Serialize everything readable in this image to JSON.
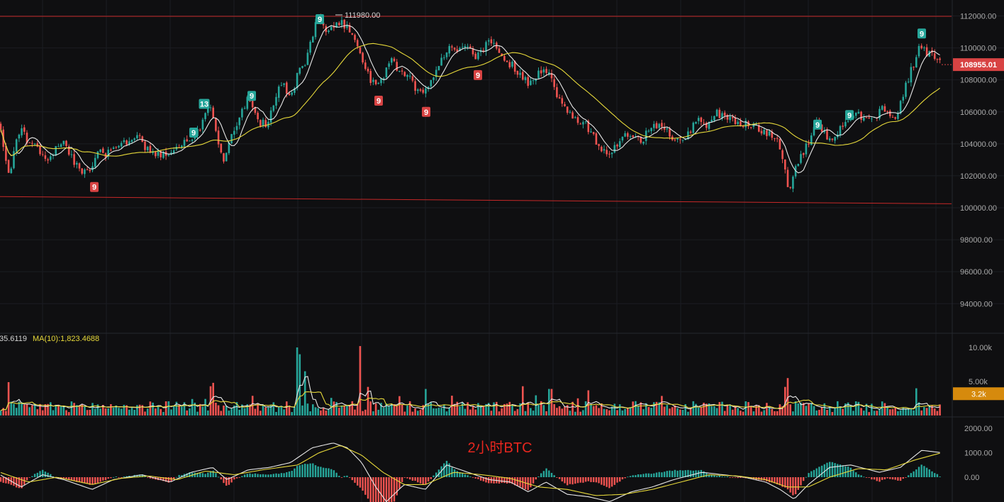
{
  "chart_data": {
    "type": "candlestick",
    "watermark": "2小时BTC",
    "symbol": "BTC",
    "colors": {
      "up": "#26a69a",
      "down": "#ef5350",
      "ma_fast": "#e8e8e8",
      "ma_slow": "#e6d83a",
      "ref_line": "#c62828",
      "price_badge": "#d84343",
      "volume_badge": "#d68a0d",
      "marker_up": "#26a69a",
      "marker_down": "#d84343"
    },
    "price": {
      "ylim": [
        92000,
        112500
      ],
      "y_ticks": [
        "112000.00",
        "110000.00",
        "108000.00",
        "106000.00",
        "104000.00",
        "102000.00",
        "100000.00",
        "98000.00",
        "96000.00",
        "94000.00"
      ],
      "y_tick_values": [
        112000,
        110000,
        108000,
        106000,
        104000,
        102000,
        100000,
        98000,
        96000,
        94000
      ],
      "current_price_label": "108955.01",
      "current_price": 108955.01,
      "high_label": "111980.00",
      "high_value": 111980,
      "resistance_level": 111980,
      "support_line": [
        100700,
        100250
      ],
      "keypoints": [
        [
          0,
          105200
        ],
        [
          8,
          103000
        ],
        [
          14,
          101700
        ],
        [
          22,
          104400
        ],
        [
          30,
          104800
        ],
        [
          40,
          104100
        ],
        [
          55,
          103600
        ],
        [
          70,
          103000
        ],
        [
          85,
          104300
        ],
        [
          100,
          103200
        ],
        [
          115,
          102300
        ],
        [
          130,
          102500
        ],
        [
          140,
          104000
        ],
        [
          150,
          103300
        ],
        [
          165,
          103800
        ],
        [
          180,
          104200
        ],
        [
          195,
          104400
        ],
        [
          210,
          103500
        ],
        [
          225,
          103400
        ],
        [
          240,
          103500
        ],
        [
          255,
          104000
        ],
        [
          270,
          104000
        ],
        [
          280,
          104800
        ],
        [
          288,
          106000
        ],
        [
          295,
          106700
        ],
        [
          305,
          104500
        ],
        [
          315,
          102900
        ],
        [
          325,
          104200
        ],
        [
          340,
          105900
        ],
        [
          350,
          106800
        ],
        [
          365,
          105300
        ],
        [
          378,
          105300
        ],
        [
          390,
          107100
        ],
        [
          400,
          107800
        ],
        [
          410,
          106700
        ],
        [
          420,
          108500
        ],
        [
          430,
          109000
        ],
        [
          440,
          110800
        ],
        [
          448,
          111800
        ],
        [
          460,
          111200
        ],
        [
          470,
          111300
        ],
        [
          480,
          111700
        ],
        [
          490,
          111300
        ],
        [
          500,
          110700
        ],
        [
          510,
          109500
        ],
        [
          520,
          108200
        ],
        [
          530,
          107500
        ],
        [
          540,
          108200
        ],
        [
          550,
          109300
        ],
        [
          560,
          108700
        ],
        [
          575,
          108200
        ],
        [
          590,
          107300
        ],
        [
          600,
          107500
        ],
        [
          610,
          108000
        ],
        [
          620,
          109000
        ],
        [
          635,
          110100
        ],
        [
          650,
          109800
        ],
        [
          660,
          110000
        ],
        [
          670,
          109200
        ],
        [
          685,
          110200
        ],
        [
          695,
          110400
        ],
        [
          705,
          109400
        ],
        [
          720,
          109000
        ],
        [
          735,
          108300
        ],
        [
          745,
          107800
        ],
        [
          760,
          108400
        ],
        [
          775,
          108600
        ],
        [
          785,
          107100
        ],
        [
          795,
          106200
        ],
        [
          810,
          105700
        ],
        [
          825,
          105300
        ],
        [
          835,
          104600
        ],
        [
          845,
          103800
        ],
        [
          860,
          103300
        ],
        [
          870,
          103900
        ],
        [
          880,
          104500
        ],
        [
          895,
          104300
        ],
        [
          905,
          104200
        ],
        [
          915,
          104900
        ],
        [
          930,
          105300
        ],
        [
          945,
          104600
        ],
        [
          960,
          104000
        ],
        [
          975,
          105000
        ],
        [
          985,
          105600
        ],
        [
          995,
          105100
        ],
        [
          1010,
          106000
        ],
        [
          1020,
          105600
        ],
        [
          1035,
          105400
        ],
        [
          1050,
          105300
        ],
        [
          1065,
          105000
        ],
        [
          1080,
          104700
        ],
        [
          1095,
          104500
        ],
        [
          1105,
          103000
        ],
        [
          1112,
          101000
        ],
        [
          1120,
          102200
        ],
        [
          1130,
          103300
        ],
        [
          1140,
          104000
        ],
        [
          1152,
          105300
        ],
        [
          1160,
          104700
        ],
        [
          1170,
          104300
        ],
        [
          1180,
          104700
        ],
        [
          1195,
          105400
        ],
        [
          1210,
          105800
        ],
        [
          1225,
          105500
        ],
        [
          1235,
          105700
        ],
        [
          1245,
          106200
        ],
        [
          1258,
          105500
        ],
        [
          1268,
          106200
        ],
        [
          1278,
          107700
        ],
        [
          1290,
          109200
        ],
        [
          1298,
          110300
        ],
        [
          1305,
          109700
        ],
        [
          1315,
          109600
        ],
        [
          1325,
          109000
        ]
      ],
      "td_markers": [
        {
          "label": "9",
          "x": 133,
          "value": 101300,
          "kind": "down"
        },
        {
          "label": "9",
          "x": 273,
          "value": 104700,
          "kind": "up"
        },
        {
          "label": "13",
          "x": 288,
          "value": 106500,
          "kind": "up"
        },
        {
          "label": "9",
          "x": 355,
          "value": 107000,
          "kind": "up"
        },
        {
          "label": "9",
          "x": 451,
          "value": 111800,
          "kind": "up"
        },
        {
          "label": "9",
          "x": 534,
          "value": 106700,
          "kind": "down"
        },
        {
          "label": "9",
          "x": 601,
          "value": 106000,
          "kind": "down"
        },
        {
          "label": "9",
          "x": 674,
          "value": 108300,
          "kind": "down"
        },
        {
          "label": "9",
          "x": 1153,
          "value": 105200,
          "kind": "up"
        },
        {
          "label": "9",
          "x": 1198,
          "value": 105800,
          "kind": "up"
        },
        {
          "label": "9",
          "x": 1300,
          "value": 110900,
          "kind": "up"
        }
      ]
    },
    "volume": {
      "legend_prefix": "35.6119",
      "legend_ma": "MA(10):1,823.4688",
      "ylim": [
        0,
        11000
      ],
      "y_ticks": [
        "10.00k",
        "5.00k"
      ],
      "y_tick_values": [
        10000,
        5000
      ],
      "current_label": "3.2k",
      "current_value": 3200,
      "spikes": [
        [
          420,
          10000
        ],
        [
          424,
          9000
        ],
        [
          430,
          6500
        ],
        [
          507,
          10200
        ],
        [
          519,
          4200
        ],
        [
          1110,
          5500
        ],
        [
          1107,
          4200
        ],
        [
          737,
          4300
        ],
        [
          829,
          3700
        ],
        [
          776,
          3900
        ],
        [
          1292,
          4000
        ],
        [
          1328,
          3400
        ],
        [
          296,
          4300
        ],
        [
          302,
          4800
        ],
        [
          13,
          4900
        ],
        [
          601,
          3900
        ]
      ]
    },
    "macd": {
      "ylim": [
        -1900,
        2400
      ],
      "y_ticks": [
        "2000.00",
        "1000.00",
        "0.00"
      ],
      "y_tick_values": [
        2000,
        1000,
        0
      ],
      "dif_keypoints": [
        [
          0,
          100
        ],
        [
          30,
          -400
        ],
        [
          60,
          100
        ],
        [
          90,
          -100
        ],
        [
          130,
          -500
        ],
        [
          160,
          -100
        ],
        [
          200,
          100
        ],
        [
          240,
          -200
        ],
        [
          270,
          200
        ],
        [
          300,
          400
        ],
        [
          320,
          -100
        ],
        [
          350,
          300
        ],
        [
          380,
          400
        ],
        [
          410,
          600
        ],
        [
          440,
          1200
        ],
        [
          470,
          1400
        ],
        [
          490,
          1200
        ],
        [
          510,
          600
        ],
        [
          530,
          -400
        ],
        [
          545,
          -1000
        ],
        [
          570,
          -300
        ],
        [
          600,
          -500
        ],
        [
          630,
          500
        ],
        [
          660,
          200
        ],
        [
          690,
          -100
        ],
        [
          720,
          -200
        ],
        [
          745,
          -600
        ],
        [
          770,
          -200
        ],
        [
          800,
          -700
        ],
        [
          830,
          -800
        ],
        [
          860,
          -1000
        ],
        [
          890,
          -600
        ],
        [
          920,
          -400
        ],
        [
          950,
          -100
        ],
        [
          990,
          200
        ],
        [
          1020,
          100
        ],
        [
          1050,
          0
        ],
        [
          1080,
          -200
        ],
        [
          1100,
          -500
        ],
        [
          1120,
          -900
        ],
        [
          1140,
          -300
        ],
        [
          1170,
          400
        ],
        [
          1200,
          500
        ],
        [
          1240,
          200
        ],
        [
          1270,
          400
        ],
        [
          1300,
          1100
        ],
        [
          1328,
          1000
        ]
      ],
      "dea_keypoints": [
        [
          0,
          200
        ],
        [
          40,
          -200
        ],
        [
          80,
          0
        ],
        [
          130,
          -300
        ],
        [
          170,
          -50
        ],
        [
          210,
          50
        ],
        [
          250,
          -100
        ],
        [
          290,
          250
        ],
        [
          330,
          100
        ],
        [
          370,
          300
        ],
        [
          420,
          500
        ],
        [
          450,
          1000
        ],
        [
          480,
          1300
        ],
        [
          510,
          900
        ],
        [
          540,
          200
        ],
        [
          570,
          -300
        ],
        [
          600,
          -300
        ],
        [
          640,
          200
        ],
        [
          680,
          100
        ],
        [
          720,
          -50
        ],
        [
          760,
          -400
        ],
        [
          800,
          -500
        ],
        [
          840,
          -750
        ],
        [
          880,
          -700
        ],
        [
          920,
          -500
        ],
        [
          960,
          -200
        ],
        [
          1000,
          100
        ],
        [
          1040,
          50
        ],
        [
          1080,
          -100
        ],
        [
          1110,
          -400
        ],
        [
          1140,
          -400
        ],
        [
          1170,
          0
        ],
        [
          1210,
          350
        ],
        [
          1250,
          300
        ],
        [
          1290,
          700
        ],
        [
          1328,
          1000
        ]
      ]
    }
  }
}
